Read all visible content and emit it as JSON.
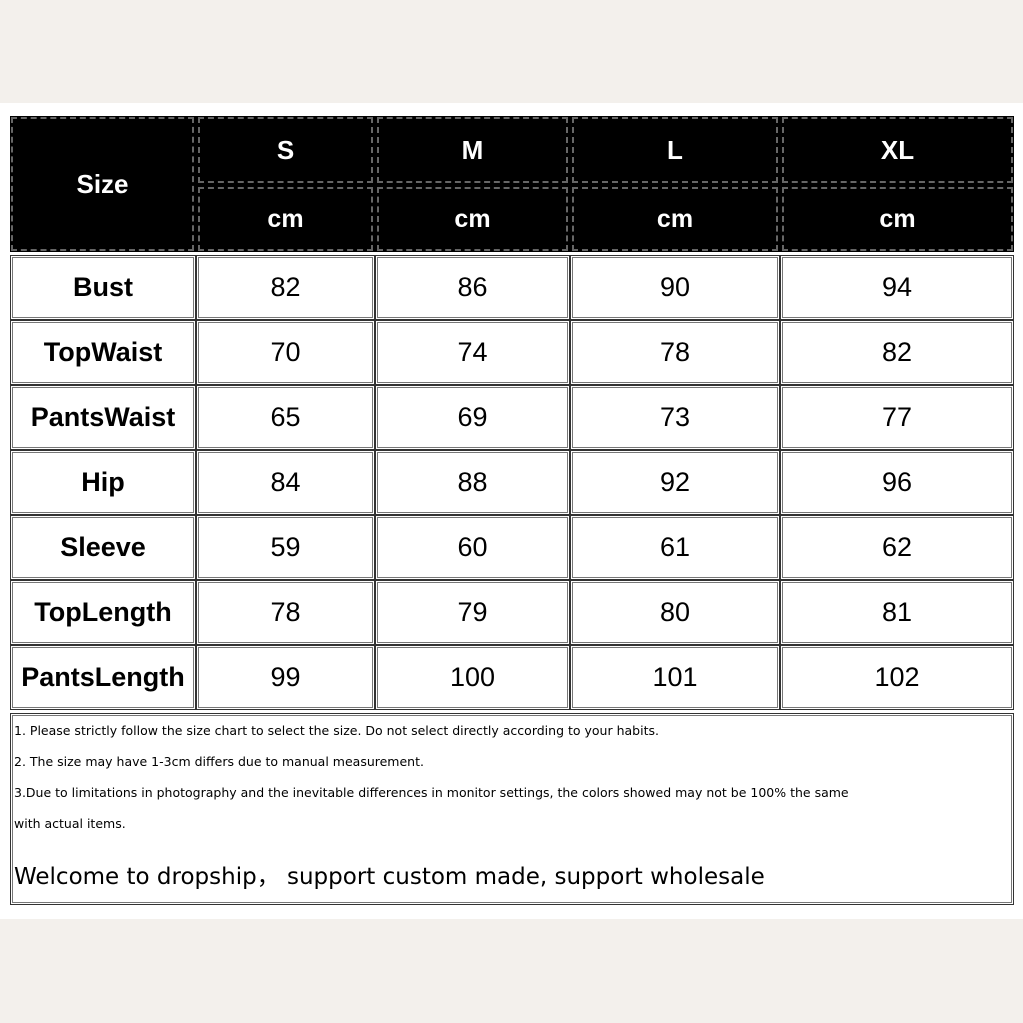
{
  "header": {
    "size_label": "Size",
    "sizes": [
      "S",
      "M",
      "L",
      "XL"
    ],
    "units": [
      "cm",
      "cm",
      "cm",
      "cm"
    ]
  },
  "rows": [
    {
      "label": "Bust",
      "values": [
        "82",
        "86",
        "90",
        "94"
      ]
    },
    {
      "label": "TopWaist",
      "values": [
        "70",
        "74",
        "78",
        "82"
      ]
    },
    {
      "label": "PantsWaist",
      "values": [
        "65",
        "69",
        "73",
        "77"
      ]
    },
    {
      "label": "Hip",
      "values": [
        "84",
        "88",
        "92",
        "96"
      ]
    },
    {
      "label": "Sleeve",
      "values": [
        "59",
        "60",
        "61",
        "62"
      ]
    },
    {
      "label": "TopLength",
      "values": [
        "78",
        "79",
        "80",
        "81"
      ]
    },
    {
      "label": "PantsLength",
      "values": [
        "99",
        "100",
        "101",
        "102"
      ]
    }
  ],
  "notes": {
    "lines": [
      "1. Please strictly follow the size chart to select the size. Do not select directly according to your habits.",
      "2. The size may have 1-3cm differs due to manual measurement.",
      "3.Due to limitations in photography and the inevitable differences in monitor settings, the colors showed may not be 100% the same",
      "with actual items."
    ],
    "welcome": "Welcome to dropship，  support custom made, support wholesale"
  },
  "colors": {
    "header_bg": "#000000",
    "header_text": "#ffffff",
    "page_bg": "#f3f0ec",
    "table_bg": "#ffffff"
  }
}
